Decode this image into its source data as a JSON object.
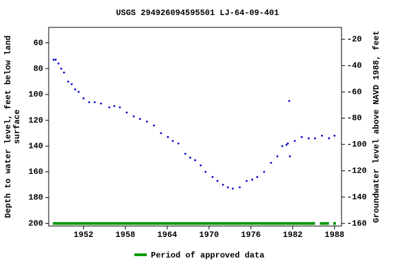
{
  "chart_data": {
    "type": "scatter",
    "title": "USGS 294926094595501 LJ-64-09-401",
    "y_label": [
      "Depth to water level, feet below land",
      "surface"
    ],
    "y2_label": "Groundwater level above NAVD 1988, feet",
    "xlim": [
      1947,
      1989
    ],
    "xticks": [
      1952,
      1958,
      1964,
      1970,
      1976,
      1982,
      1988
    ],
    "ylim": [
      202,
      48
    ],
    "yticks": [
      60,
      80,
      100,
      120,
      140,
      160,
      180,
      200
    ],
    "y2lim": [
      -162,
      -11
    ],
    "y2ticks": [
      -20,
      -40,
      -60,
      -80,
      -100,
      -120,
      -140,
      -160
    ],
    "series": [
      {
        "color": "#0000cc",
        "x": [
          1947.7,
          1948.0,
          1948.4,
          1948.8,
          1949.2,
          1949.8,
          1950.3,
          1950.8,
          1951.3,
          1952.0,
          1952.8,
          1953.6,
          1954.5,
          1955.7,
          1956.4,
          1957.2,
          1958.2,
          1959.2,
          1960.1,
          1961.1,
          1962.1,
          1963.1,
          1964.1,
          1964.8,
          1965.6,
          1966.6,
          1967.3,
          1968.0,
          1968.8,
          1969.5,
          1970.5,
          1971.2,
          1972.0,
          1972.7,
          1973.4,
          1974.4,
          1975.4,
          1976.2,
          1976.9,
          1977.9,
          1978.9,
          1979.8,
          1980.5,
          1981.1,
          1981.3,
          1981.5,
          1981.6,
          1982.3,
          1983.3,
          1984.3,
          1985.2,
          1986.2,
          1987.2,
          1988.0
        ],
        "values": [
          73,
          73,
          76,
          80,
          83,
          90,
          92,
          96,
          98,
          103,
          106,
          106,
          107,
          110,
          109,
          110,
          114,
          117,
          119,
          121,
          124,
          130,
          133,
          136,
          138,
          146,
          149,
          151,
          155,
          160,
          164,
          167,
          170,
          172,
          173,
          172,
          167,
          166,
          164,
          160,
          153,
          148,
          140,
          139,
          138,
          105,
          148,
          136,
          133,
          134,
          134,
          132,
          134,
          132
        ]
      }
    ],
    "approved_periods": [
      {
        "start": 1947.6,
        "end": 1985.2
      },
      {
        "start": 1985.9,
        "end": 1987.2
      },
      {
        "start": 1987.8,
        "end": 1988.2
      }
    ],
    "approved_color": "#009900",
    "legend_label": "Period of approved data"
  }
}
